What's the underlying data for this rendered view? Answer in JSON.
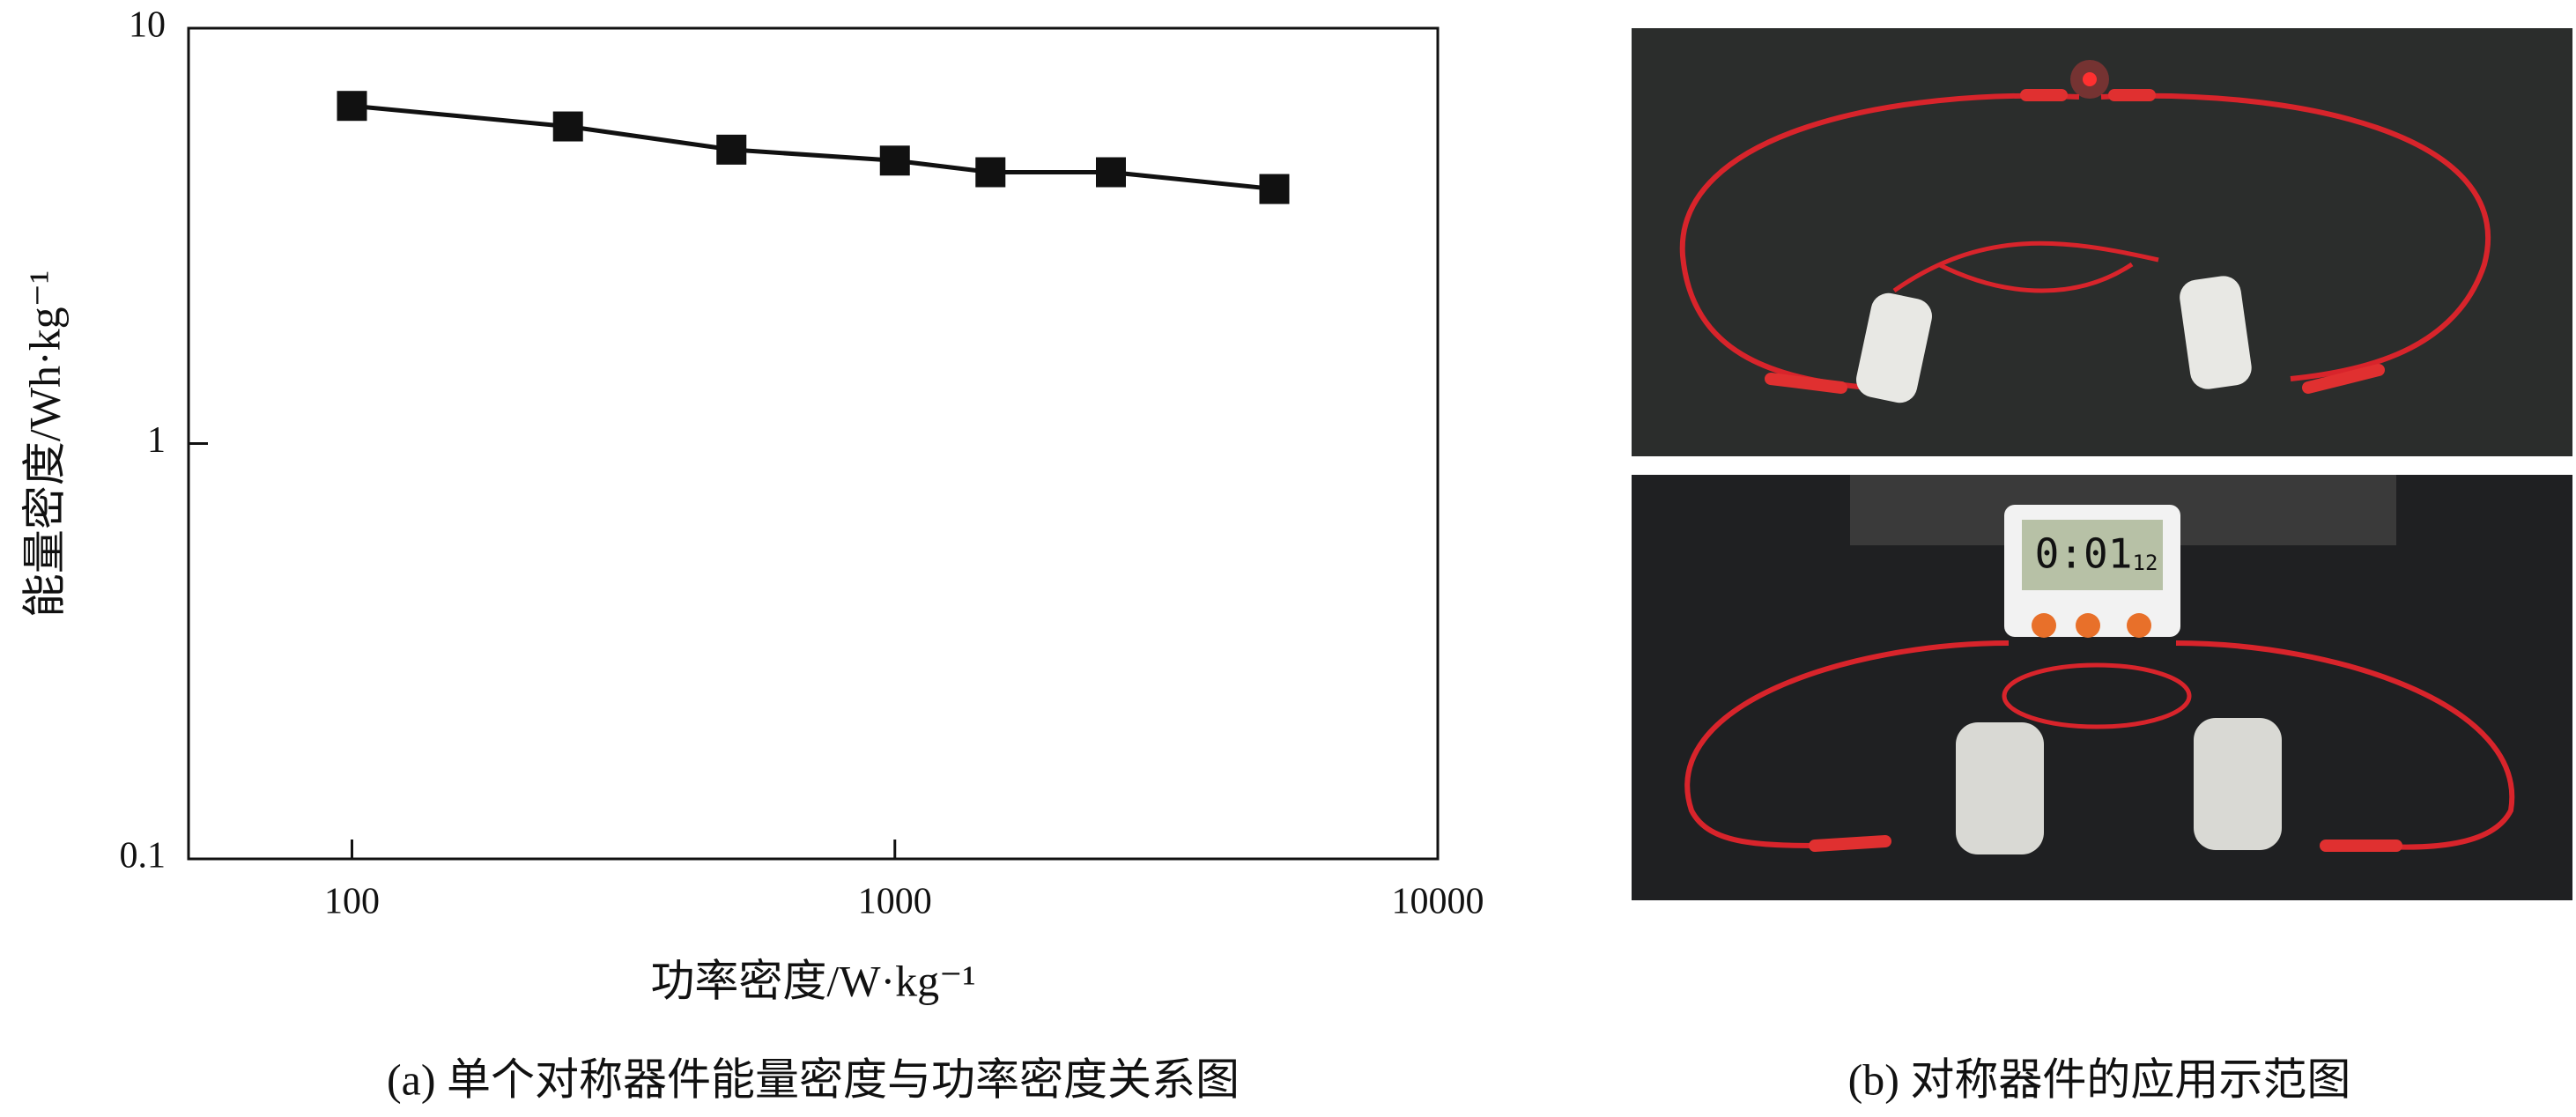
{
  "chart_data": {
    "type": "line",
    "x_label": "功率密度/W·kg⁻¹",
    "y_label": "能量密度/Wh·kg⁻¹",
    "x": [
      100,
      250,
      500,
      1000,
      1500,
      2500,
      5000
    ],
    "values": [
      6.5,
      5.8,
      5.1,
      4.8,
      4.5,
      4.5,
      4.1
    ],
    "color": "#111111",
    "marker": "square",
    "xlim": [
      50,
      10000
    ],
    "ylim": [
      0.1,
      10
    ],
    "xticks": [
      100,
      1000,
      10000
    ],
    "yticks": [
      0.1,
      1,
      10
    ],
    "xscale": "log",
    "yscale": "log"
  },
  "figure": {
    "caption_a": "(a) 单个对称器件能量密度与功率密度关系图",
    "caption_b": "(b) 对称器件的应用示范图",
    "timer_display": "0:01",
    "timer_small": "12"
  }
}
